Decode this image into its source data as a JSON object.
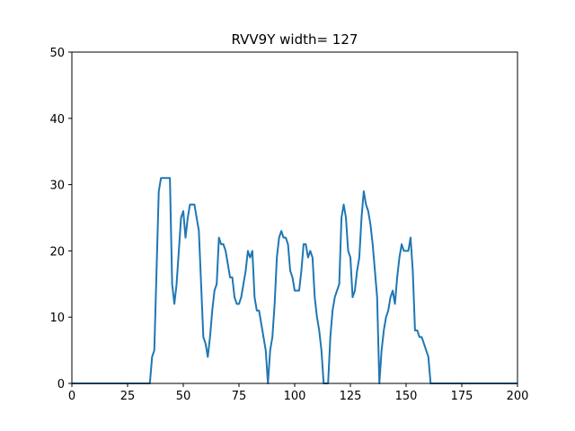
{
  "chart_data": {
    "type": "line",
    "title": "RVV9Y width= 127",
    "xlabel": "",
    "ylabel": "",
    "xlim": [
      0,
      200
    ],
    "ylim": [
      0,
      50
    ],
    "xticks": [
      0,
      25,
      50,
      75,
      100,
      125,
      150,
      175,
      200
    ],
    "xtick_labels": [
      "0",
      "25",
      "50",
      "75",
      "100",
      "125",
      "150",
      "175",
      "200"
    ],
    "yticks": [
      0,
      10,
      20,
      30,
      40,
      50
    ],
    "ytick_labels": [
      "0",
      "10",
      "20",
      "30",
      "40",
      "50"
    ],
    "grid": false,
    "line_color": "#1f77b4",
    "series": [
      {
        "x": [
          0,
          35,
          36,
          37,
          38,
          39,
          40,
          41,
          42,
          43,
          44,
          45,
          46,
          47,
          48,
          49,
          50,
          51,
          52,
          53,
          54,
          55,
          56,
          57,
          58,
          59,
          60,
          61,
          62,
          63,
          64,
          65,
          66,
          67,
          68,
          69,
          70,
          71,
          72,
          73,
          74,
          75,
          76,
          77,
          78,
          79,
          80,
          81,
          82,
          83,
          84,
          85,
          86,
          87,
          88,
          89,
          90,
          91,
          92,
          93,
          94,
          95,
          96,
          97,
          98,
          99,
          100,
          101,
          102,
          103,
          104,
          105,
          106,
          107,
          108,
          109,
          110,
          111,
          112,
          113,
          114,
          115,
          116,
          117,
          118,
          119,
          120,
          121,
          122,
          123,
          124,
          125,
          126,
          127,
          128,
          129,
          130,
          131,
          132,
          133,
          134,
          135,
          136,
          137,
          138,
          139,
          140,
          141,
          142,
          143,
          144,
          145,
          146,
          147,
          148,
          149,
          150,
          151,
          152,
          153,
          154,
          155,
          156,
          157,
          158,
          159,
          160,
          161,
          162,
          200
        ],
        "y": [
          0,
          0,
          4,
          5,
          17,
          29,
          31,
          31,
          31,
          31,
          31,
          15,
          12,
          15,
          20,
          25,
          26,
          22,
          25,
          27,
          27,
          27,
          25,
          23,
          15,
          7,
          6,
          4,
          7,
          11,
          14,
          15,
          22,
          21,
          21,
          20,
          18,
          16,
          16,
          13,
          12,
          12,
          13,
          15,
          17,
          20,
          19,
          20,
          13,
          11,
          11,
          9,
          7,
          5,
          0,
          5,
          7,
          12,
          19,
          22,
          23,
          22,
          22,
          21,
          17,
          16,
          14,
          14,
          14,
          17,
          21,
          21,
          19,
          20,
          19,
          13,
          10,
          8,
          5,
          0,
          0,
          0,
          7,
          11,
          13,
          14,
          15,
          25,
          27,
          25,
          20,
          19,
          13,
          14,
          17,
          19,
          25,
          29,
          27,
          26,
          24,
          21,
          17,
          13,
          0,
          5,
          8,
          10,
          11,
          13,
          14,
          12,
          16,
          19,
          21,
          20,
          20,
          20,
          22,
          17,
          8,
          8,
          7,
          7,
          6,
          5,
          4,
          0,
          0,
          0
        ]
      }
    ]
  }
}
